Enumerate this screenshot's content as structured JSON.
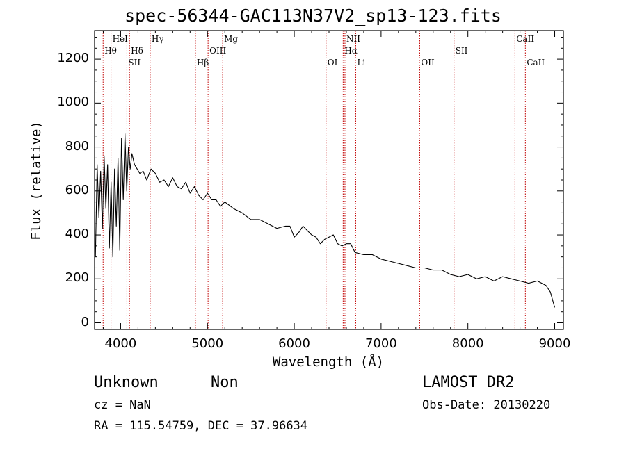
{
  "chart_data": {
    "type": "line",
    "title": "spec-56344-GAC113N37V2_sp13-123.fits",
    "xlabel": "Wavelength (Å)",
    "ylabel": "Flux (relative)",
    "xlim": [
      3700,
      9100
    ],
    "ylim": [
      -30,
      1330
    ],
    "xticks": [
      4000,
      5000,
      6000,
      7000,
      8000,
      9000
    ],
    "yticks": [
      0,
      200,
      400,
      600,
      800,
      1000,
      1200
    ],
    "grid": false,
    "line_color": "#000000",
    "marker_line_color": "#c00000",
    "spectral_lines": [
      {
        "name": "Hθ",
        "wavelength": 3798,
        "row": 2
      },
      {
        "name": "HeI",
        "wavelength": 3889,
        "row": 1
      },
      {
        "name": "SII",
        "wavelength": 4072,
        "row": 3
      },
      {
        "name": "Hδ",
        "wavelength": 4102,
        "row": 2
      },
      {
        "name": "Hγ",
        "wavelength": 4340,
        "row": 1
      },
      {
        "name": "Hβ",
        "wavelength": 4861,
        "row": 3
      },
      {
        "name": "OIII",
        "wavelength": 5007,
        "row": 2
      },
      {
        "name": "Mg",
        "wavelength": 5175,
        "row": 1
      },
      {
        "name": "OI",
        "wavelength": 6366,
        "row": 3
      },
      {
        "name": "NII",
        "wavelength": 6584,
        "row": 1
      },
      {
        "name": "Hα",
        "wavelength": 6563,
        "row": 2
      },
      {
        "name": "Li",
        "wavelength": 6708,
        "row": 3
      },
      {
        "name": "OII",
        "wavelength": 7445,
        "row": 3
      },
      {
        "name": "SII",
        "wavelength": 7840,
        "row": 2
      },
      {
        "name": "CaII",
        "wavelength": 8542,
        "row": 1
      },
      {
        "name": "CaII",
        "wavelength": 8662,
        "row": 3
      }
    ],
    "series": [
      {
        "x": [
          3710,
          3730,
          3750,
          3770,
          3790,
          3810,
          3830,
          3850,
          3870,
          3890,
          3910,
          3930,
          3950,
          3970,
          3990,
          4010,
          4030,
          4050,
          4070,
          4090,
          4110,
          4130,
          4160,
          4190,
          4220,
          4260,
          4300,
          4350,
          4400,
          4450,
          4500,
          4550,
          4600,
          4650,
          4700,
          4750,
          4800,
          4850,
          4900,
          4950,
          5000,
          5050,
          5100,
          5150,
          5200,
          5300,
          5400,
          5500,
          5600,
          5700,
          5800,
          5900,
          5950,
          6000,
          6050,
          6100,
          6150,
          6200,
          6250,
          6300,
          6350,
          6400,
          6450,
          6500,
          6550,
          6600,
          6650,
          6700,
          6800,
          6900,
          7000,
          7100,
          7200,
          7300,
          7400,
          7500,
          7600,
          7700,
          7800,
          7900,
          8000,
          8100,
          8200,
          8300,
          8400,
          8500,
          8600,
          8700,
          8800,
          8900,
          8950,
          9000
        ],
        "y": [
          300,
          720,
          480,
          690,
          430,
          760,
          520,
          720,
          340,
          640,
          300,
          700,
          440,
          750,
          330,
          840,
          560,
          860,
          600,
          800,
          700,
          770,
          720,
          700,
          680,
          690,
          650,
          700,
          680,
          640,
          650,
          620,
          660,
          620,
          610,
          640,
          590,
          620,
          580,
          560,
          590,
          560,
          560,
          530,
          550,
          520,
          500,
          470,
          470,
          450,
          430,
          440,
          440,
          390,
          410,
          440,
          420,
          400,
          390,
          360,
          380,
          390,
          400,
          360,
          350,
          360,
          360,
          320,
          310,
          310,
          290,
          280,
          270,
          260,
          250,
          250,
          240,
          240,
          220,
          210,
          220,
          200,
          210,
          190,
          210,
          200,
          190,
          180,
          190,
          170,
          140,
          70
        ]
      }
    ]
  },
  "info": {
    "object_class": "Unknown",
    "subclass": "Non",
    "survey": "LAMOST DR2",
    "cz_text": "cz = NaN",
    "obs_date_text": "Obs-Date: 20130220",
    "coord_text": "RA = 115.54759, DEC =  37.96634"
  }
}
